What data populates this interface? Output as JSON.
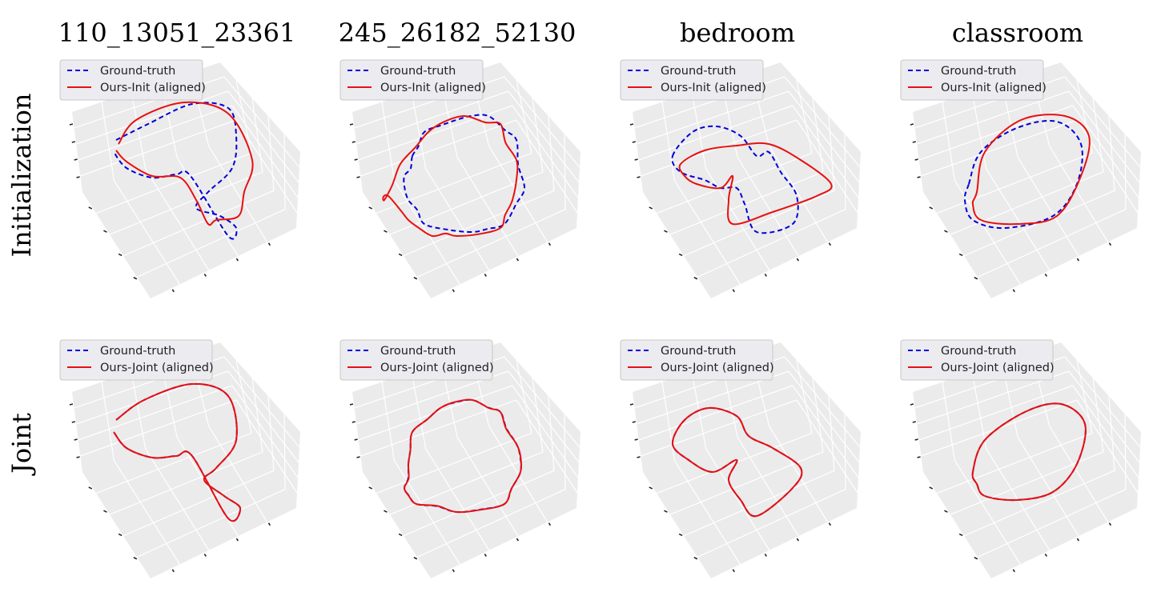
{
  "column_titles": [
    "110_13051_23361",
    "245_26182_52130",
    "bedroom",
    "classroom"
  ],
  "row_labels": [
    "Initialization",
    "Joint"
  ],
  "colors": {
    "ground_truth": "#0000d8",
    "ours": "#e81010",
    "pane": "#ebebeb",
    "grid": "#ffffff",
    "legend_bg": "#ebebf0",
    "legend_border": "#c8c8c8"
  },
  "legends": {
    "init": [
      "Ground-truth",
      "Ours-Init (aligned)"
    ],
    "joint": [
      "Ground-truth",
      "Ours-Joint (aligned)"
    ]
  },
  "chart_data": [
    {
      "type": "line",
      "row": "Initialization",
      "title": "110_13051_23361",
      "series": [
        {
          "name": "Ground-truth",
          "style": "dashed"
        },
        {
          "name": "Ours-Init (aligned)",
          "style": "solid"
        }
      ],
      "grid": true,
      "legend": "top-left",
      "projection": "3d"
    },
    {
      "type": "line",
      "row": "Initialization",
      "title": "245_26182_52130",
      "series": [
        {
          "name": "Ground-truth",
          "style": "dashed"
        },
        {
          "name": "Ours-Init (aligned)",
          "style": "solid"
        }
      ],
      "grid": true,
      "legend": "top-left",
      "projection": "3d"
    },
    {
      "type": "line",
      "row": "Initialization",
      "title": "bedroom",
      "series": [
        {
          "name": "Ground-truth",
          "style": "dashed"
        },
        {
          "name": "Ours-Init (aligned)",
          "style": "solid"
        }
      ],
      "grid": true,
      "legend": "top-left",
      "projection": "3d"
    },
    {
      "type": "line",
      "row": "Initialization",
      "title": "classroom",
      "series": [
        {
          "name": "Ground-truth",
          "style": "dashed"
        },
        {
          "name": "Ours-Init (aligned)",
          "style": "solid"
        }
      ],
      "grid": true,
      "legend": "top-left",
      "projection": "3d"
    },
    {
      "type": "line",
      "row": "Joint",
      "title": "110_13051_23361",
      "series": [
        {
          "name": "Ground-truth",
          "style": "dashed"
        },
        {
          "name": "Ours-Joint (aligned)",
          "style": "solid"
        }
      ],
      "grid": true,
      "legend": "top-left",
      "projection": "3d"
    },
    {
      "type": "line",
      "row": "Joint",
      "title": "245_26182_52130",
      "series": [
        {
          "name": "Ground-truth",
          "style": "dashed"
        },
        {
          "name": "Ours-Joint (aligned)",
          "style": "solid"
        }
      ],
      "grid": true,
      "legend": "top-left",
      "projection": "3d"
    },
    {
      "type": "line",
      "row": "Joint",
      "title": "bedroom",
      "series": [
        {
          "name": "Ground-truth",
          "style": "dashed"
        },
        {
          "name": "Ours-Joint (aligned)",
          "style": "solid"
        }
      ],
      "grid": true,
      "legend": "top-left",
      "projection": "3d"
    },
    {
      "type": "line",
      "row": "Joint",
      "title": "classroom",
      "series": [
        {
          "name": "Ground-truth",
          "style": "dashed"
        },
        {
          "name": "Ours-Joint (aligned)",
          "style": "solid"
        }
      ],
      "grid": true,
      "legend": "top-left",
      "projection": "3d"
    }
  ]
}
